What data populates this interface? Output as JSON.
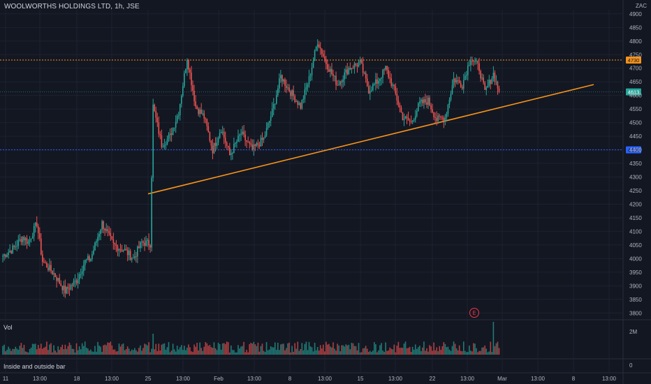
{
  "header": {
    "title": "WOOLWORTHS HOLDINGS LTD, 1h, JSE",
    "currency": "ZAC"
  },
  "panes": {
    "volume_label": "Vol",
    "indicator_label": "Inside and outside bar",
    "indicator_value": "0",
    "volume_tick": "2M"
  },
  "earnings_marker": "E",
  "colors": {
    "background": "#131722",
    "up": "#26a69a",
    "down": "#ef5350",
    "trendline": "#f7931a",
    "resistance": "#f7931a",
    "support": "#2962ff",
    "last_price": "#26a69a",
    "grid": "#1e2230"
  },
  "chart_data": {
    "type": "candlestick",
    "title": "WOOLWORTHS HOLDINGS LTD, 1h, JSE",
    "y_unit": "ZAC",
    "ylim": [
      3775,
      4915
    ],
    "y_ticks": [
      4900,
      4850,
      4800,
      4750,
      4700,
      4650,
      4600,
      4550,
      4500,
      4450,
      4400,
      4350,
      4300,
      4250,
      4200,
      4150,
      4100,
      4050,
      4000,
      3950,
      3900,
      3850,
      3800
    ],
    "x_ticks": [
      "11",
      "13:00",
      "18",
      "13:00",
      "25",
      "13:00",
      "Feb",
      "13:00",
      "8",
      "13:00",
      "15",
      "13:00",
      "22",
      "13:00",
      "Mar",
      "13:00",
      "8",
      "13:00"
    ],
    "price_labels": {
      "resistance": "4730",
      "last": "4613",
      "support": "4400"
    },
    "horizontal_lines": {
      "resistance": 4730,
      "support": 4400
    },
    "trendline": {
      "from": {
        "x": "25",
        "y": 4238
      },
      "to": {
        "x": "after Mar 8",
        "y": 4640
      }
    },
    "key_points": [
      {
        "t": 0,
        "p": 4010
      },
      {
        "t": 8,
        "p": 4040
      },
      {
        "t": 14,
        "p": 4080
      },
      {
        "t": 18,
        "p": 4060
      },
      {
        "t": 24,
        "p": 4130
      },
      {
        "t": 28,
        "p": 3990
      },
      {
        "t": 36,
        "p": 3945
      },
      {
        "t": 44,
        "p": 3880
      },
      {
        "t": 52,
        "p": 3920
      },
      {
        "t": 58,
        "p": 3990
      },
      {
        "t": 62,
        "p": 4000
      },
      {
        "t": 70,
        "p": 4130
      },
      {
        "t": 78,
        "p": 4050
      },
      {
        "t": 86,
        "p": 4030
      },
      {
        "t": 92,
        "p": 4000
      },
      {
        "t": 98,
        "p": 4060
      },
      {
        "t": 104,
        "p": 4055
      },
      {
        "t": 106,
        "p": 4560
      },
      {
        "t": 112,
        "p": 4420
      },
      {
        "t": 118,
        "p": 4450
      },
      {
        "t": 124,
        "p": 4540
      },
      {
        "t": 130,
        "p": 4740
      },
      {
        "t": 136,
        "p": 4560
      },
      {
        "t": 142,
        "p": 4520
      },
      {
        "t": 148,
        "p": 4400
      },
      {
        "t": 154,
        "p": 4480
      },
      {
        "t": 160,
        "p": 4380
      },
      {
        "t": 168,
        "p": 4460
      },
      {
        "t": 176,
        "p": 4400
      },
      {
        "t": 184,
        "p": 4440
      },
      {
        "t": 190,
        "p": 4540
      },
      {
        "t": 196,
        "p": 4670
      },
      {
        "t": 202,
        "p": 4620
      },
      {
        "t": 210,
        "p": 4560
      },
      {
        "t": 216,
        "p": 4660
      },
      {
        "t": 222,
        "p": 4800
      },
      {
        "t": 228,
        "p": 4720
      },
      {
        "t": 236,
        "p": 4640
      },
      {
        "t": 244,
        "p": 4700
      },
      {
        "t": 252,
        "p": 4720
      },
      {
        "t": 258,
        "p": 4620
      },
      {
        "t": 264,
        "p": 4650
      },
      {
        "t": 270,
        "p": 4700
      },
      {
        "t": 276,
        "p": 4620
      },
      {
        "t": 282,
        "p": 4520
      },
      {
        "t": 288,
        "p": 4500
      },
      {
        "t": 294,
        "p": 4570
      },
      {
        "t": 300,
        "p": 4580
      },
      {
        "t": 306,
        "p": 4510
      },
      {
        "t": 312,
        "p": 4520
      },
      {
        "t": 318,
        "p": 4660
      },
      {
        "t": 324,
        "p": 4640
      },
      {
        "t": 330,
        "p": 4740
      },
      {
        "t": 336,
        "p": 4700
      },
      {
        "t": 340,
        "p": 4610
      },
      {
        "t": 346,
        "p": 4680
      },
      {
        "t": 350,
        "p": 4613
      }
    ],
    "volume_scale_max": "2M"
  }
}
